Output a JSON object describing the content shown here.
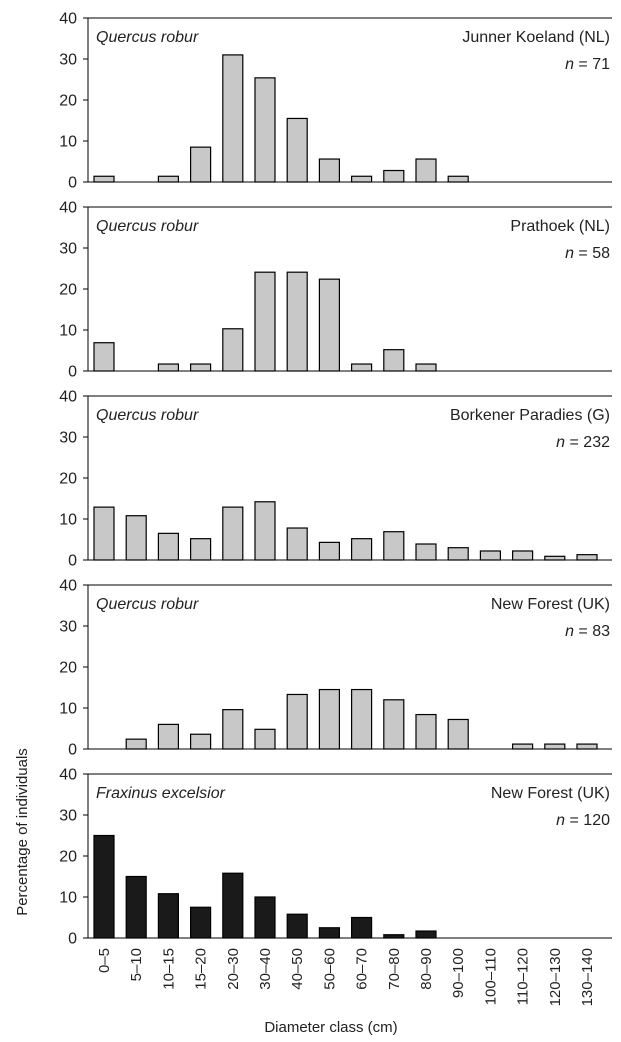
{
  "chart_data": {
    "type": "bar",
    "y_axis_label": "Percentage of individuals",
    "x_axis_label": "Diameter class (cm)",
    "categories": [
      "0–5",
      "5–10",
      "10–15",
      "15–20",
      "20–30",
      "30–40",
      "40–50",
      "50–60",
      "60–70",
      "70–80",
      "80–90",
      "90–100",
      "100–110",
      "110–120",
      "120–130",
      "130–140"
    ],
    "y_ticks": [
      "0",
      "10",
      "20",
      "30",
      "40"
    ],
    "ylim": [
      0,
      40
    ],
    "panels": [
      {
        "species": "Quercus robur",
        "site": "Junner Koeland (NL)",
        "n_text": "= 71",
        "bar_color": "#c8c8c8",
        "values": [
          1.4,
          0,
          1.4,
          8.5,
          31,
          25.4,
          15.5,
          5.6,
          1.4,
          2.8,
          5.6,
          1.4,
          0,
          0,
          0,
          0
        ]
      },
      {
        "species": "Quercus robur",
        "site": "Prathoek (NL)",
        "n_text": "= 58",
        "bar_color": "#c8c8c8",
        "values": [
          6.9,
          0,
          1.7,
          1.7,
          10.3,
          24.1,
          24.1,
          22.4,
          1.7,
          5.2,
          1.7,
          0,
          0,
          0,
          0,
          0
        ]
      },
      {
        "species": "Quercus robur",
        "site": "Borkener Paradies (G)",
        "n_text": "= 232",
        "bar_color": "#c8c8c8",
        "values": [
          12.9,
          10.8,
          6.5,
          5.2,
          12.9,
          14.2,
          7.8,
          4.3,
          5.2,
          6.9,
          3.9,
          3.0,
          2.2,
          2.2,
          0.9,
          1.3
        ]
      },
      {
        "species": "Quercus robur",
        "site": "New Forest (UK)",
        "n_text": "= 83",
        "bar_color": "#c8c8c8",
        "values": [
          0,
          2.4,
          6.0,
          3.6,
          9.6,
          4.8,
          13.3,
          14.5,
          14.5,
          12.0,
          8.4,
          7.2,
          0,
          1.2,
          1.2,
          1.2
        ]
      },
      {
        "species": "Fraxinus excelsior",
        "site": "New Forest (UK)",
        "n_text": "= 120",
        "bar_color": "#1a1a1a",
        "values": [
          25,
          15,
          10.8,
          7.5,
          15.8,
          10,
          5.8,
          2.5,
          5,
          0.8,
          1.7,
          0,
          0,
          0,
          0,
          0
        ]
      }
    ]
  }
}
